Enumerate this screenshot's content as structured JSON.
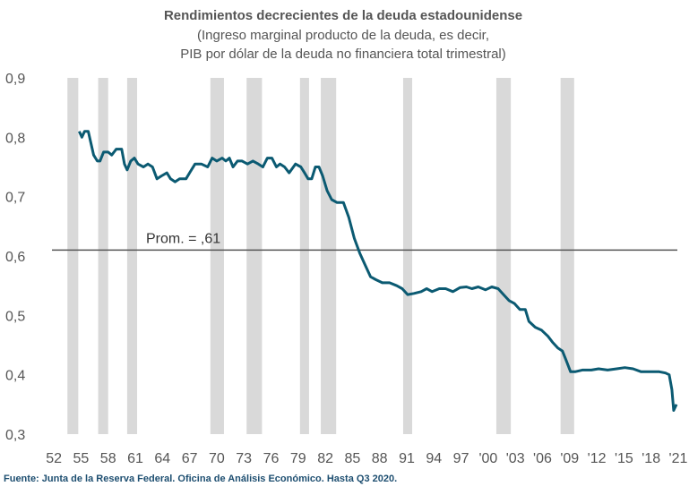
{
  "chart_data": {
    "type": "line",
    "title": "Rendimientos decrecientes de la deuda estadounidense",
    "subtitle": [
      "(Ingreso marginal producto de la deuda, es decir,",
      "PIB por dólar de la deuda no financiera total trimestral)"
    ],
    "source": "Fuente: Junta de la Reserva Federal. Oficina de Análisis Económico. Hasta Q3 2020.",
    "xlim": [
      1951,
      2021.3
    ],
    "ylim": [
      0.3,
      0.9
    ],
    "yticks": [
      {
        "value": 0.3,
        "label": "0,3"
      },
      {
        "value": 0.4,
        "label": "0,4"
      },
      {
        "value": 0.5,
        "label": "0,5"
      },
      {
        "value": 0.6,
        "label": "0,6"
      },
      {
        "value": 0.7,
        "label": "0,7"
      },
      {
        "value": 0.8,
        "label": "0,8"
      },
      {
        "value": 0.9,
        "label": "0,9"
      }
    ],
    "xticks": [
      {
        "value": 1952,
        "label": "52"
      },
      {
        "value": 1955,
        "label": "55"
      },
      {
        "value": 1958,
        "label": "58"
      },
      {
        "value": 1961,
        "label": "61"
      },
      {
        "value": 1964,
        "label": "64"
      },
      {
        "value": 1967,
        "label": "67"
      },
      {
        "value": 1970,
        "label": "70"
      },
      {
        "value": 1973,
        "label": "73"
      },
      {
        "value": 1976,
        "label": "76"
      },
      {
        "value": 1979,
        "label": "79"
      },
      {
        "value": 1982,
        "label": "82"
      },
      {
        "value": 1985,
        "label": "85"
      },
      {
        "value": 1988,
        "label": "88"
      },
      {
        "value": 1991,
        "label": "91"
      },
      {
        "value": 1994,
        "label": "94"
      },
      {
        "value": 1997,
        "label": "97"
      },
      {
        "value": 2000,
        "label": "'00"
      },
      {
        "value": 2003,
        "label": "'03"
      },
      {
        "value": 2006,
        "label": "'06"
      },
      {
        "value": 2009,
        "label": "'09"
      },
      {
        "value": 2012,
        "label": "'12"
      },
      {
        "value": 2015,
        "label": "'15"
      },
      {
        "value": 2018,
        "label": "'18"
      },
      {
        "value": 2021,
        "label": "'21"
      }
    ],
    "recessions": [
      [
        1953.5,
        1954.7
      ],
      [
        1956.9,
        1958.0
      ],
      [
        1960.1,
        1961.2
      ],
      [
        1969.3,
        1970.8
      ],
      [
        1973.3,
        1975.0
      ],
      [
        1979.2,
        1980.2
      ],
      [
        1981.5,
        1983.2
      ],
      [
        1990.6,
        1991.6
      ],
      [
        2000.9,
        2002.5
      ],
      [
        2008.0,
        2009.5
      ]
    ],
    "recession_color": "#d9d9d9",
    "average": {
      "value": 0.61,
      "label": "Prom. = ,61",
      "color": "#555555"
    },
    "series": [
      {
        "color": "#0b5a72",
        "x": [
          1954.8,
          1955.1,
          1955.4,
          1955.8,
          1956.1,
          1956.4,
          1956.8,
          1957.1,
          1957.5,
          1958.0,
          1958.4,
          1958.9,
          1959.5,
          1959.8,
          1960.1,
          1960.5,
          1960.9,
          1961.3,
          1961.9,
          1962.4,
          1962.9,
          1963.4,
          1963.9,
          1964.5,
          1964.9,
          1965.4,
          1965.9,
          1966.6,
          1967.0,
          1967.6,
          1968.3,
          1969.0,
          1969.5,
          1970.0,
          1970.6,
          1971.0,
          1971.4,
          1971.8,
          1972.3,
          1972.8,
          1973.4,
          1974.0,
          1974.6,
          1975.1,
          1975.6,
          1976.1,
          1976.6,
          1977.0,
          1977.5,
          1978.0,
          1978.7,
          1979.3,
          1979.7,
          1980.1,
          1980.5,
          1980.9,
          1981.3,
          1981.7,
          1982.2,
          1982.7,
          1983.3,
          1984.0,
          1984.6,
          1985.2,
          1985.8,
          1986.4,
          1987.0,
          1987.6,
          1988.3,
          1989.1,
          1989.9,
          1990.5,
          1991.1,
          1991.8,
          1992.6,
          1993.2,
          1993.8,
          1994.6,
          1995.3,
          1996.1,
          1996.9,
          1997.6,
          1998.2,
          1998.9,
          1999.7,
          2000.4,
          2001.1,
          2001.7,
          2002.3,
          2002.9,
          2003.5,
          2004.1,
          2004.5,
          2005.2,
          2005.9,
          2006.6,
          2007.1,
          2007.7,
          2008.2,
          2008.6,
          2009.1,
          2009.6,
          2010.4,
          2011.4,
          2012.2,
          2013.2,
          2014.2,
          2015.1,
          2016.0,
          2016.9,
          2017.9,
          2018.9,
          2019.6,
          2020.0,
          2020.3,
          2020.5,
          2020.8
        ],
        "values": [
          0.81,
          0.8,
          0.81,
          0.81,
          0.79,
          0.77,
          0.76,
          0.76,
          0.775,
          0.775,
          0.77,
          0.78,
          0.78,
          0.755,
          0.745,
          0.76,
          0.765,
          0.755,
          0.75,
          0.755,
          0.75,
          0.73,
          0.735,
          0.74,
          0.73,
          0.725,
          0.73,
          0.73,
          0.74,
          0.755,
          0.755,
          0.75,
          0.765,
          0.76,
          0.765,
          0.76,
          0.765,
          0.75,
          0.76,
          0.76,
          0.755,
          0.76,
          0.755,
          0.75,
          0.765,
          0.765,
          0.75,
          0.755,
          0.75,
          0.74,
          0.755,
          0.75,
          0.74,
          0.73,
          0.73,
          0.75,
          0.75,
          0.735,
          0.71,
          0.695,
          0.69,
          0.69,
          0.665,
          0.63,
          0.605,
          0.585,
          0.565,
          0.56,
          0.555,
          0.555,
          0.55,
          0.545,
          0.535,
          0.537,
          0.54,
          0.545,
          0.54,
          0.545,
          0.545,
          0.54,
          0.547,
          0.548,
          0.545,
          0.548,
          0.543,
          0.548,
          0.545,
          0.535,
          0.525,
          0.52,
          0.51,
          0.51,
          0.49,
          0.48,
          0.475,
          0.465,
          0.455,
          0.445,
          0.44,
          0.425,
          0.405,
          0.405,
          0.408,
          0.408,
          0.41,
          0.408,
          0.41,
          0.412,
          0.41,
          0.405,
          0.405,
          0.405,
          0.403,
          0.4,
          0.375,
          0.34,
          0.35
        ]
      }
    ]
  }
}
